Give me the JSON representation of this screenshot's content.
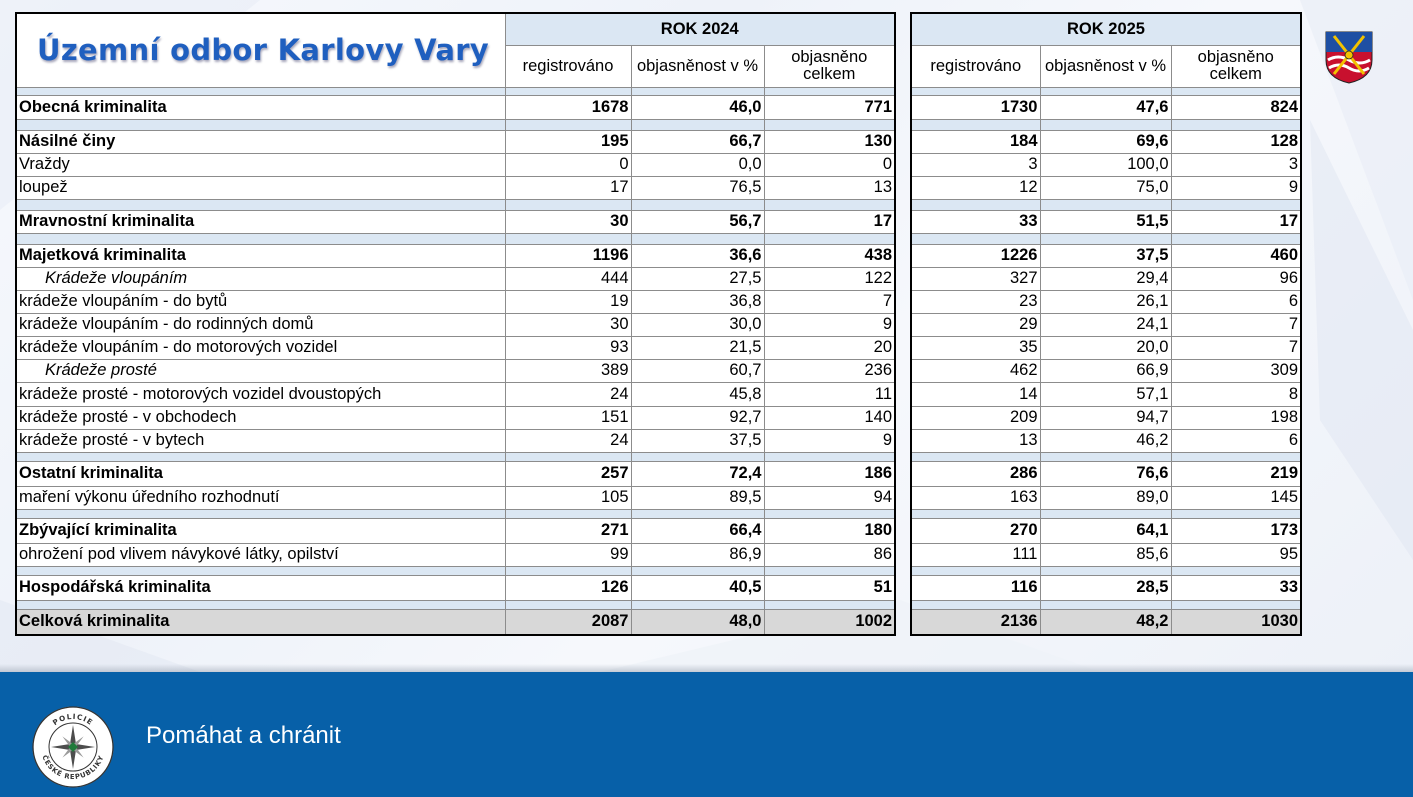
{
  "page": {
    "title": "Územní odbor Karlovy Vary",
    "slogan": "Pomáhat a chránit",
    "badge_text": "POLICIE ČESKÉ REPUBLIKY",
    "footer_color": "#0760a8",
    "title_color": "#1f5fbf"
  },
  "years": {
    "left": "ROK 2024",
    "right": "ROK 2025"
  },
  "columns": {
    "registered": "registrováno",
    "clearance_pct": "objasněnost v %",
    "cleared_total": "objasněno celkem"
  },
  "rows": [
    {
      "label": "Obecná kriminalita",
      "y2024": [
        "1678",
        "46,0",
        "771"
      ],
      "y2025": [
        "1730",
        "47,6",
        "824"
      ]
    },
    {
      "label": "Násilné činy",
      "y2024": [
        "195",
        "66,7",
        "130"
      ],
      "y2025": [
        "184",
        "69,6",
        "128"
      ]
    },
    {
      "label": "Vraždy",
      "y2024": [
        "0",
        "0,0",
        "0"
      ],
      "y2025": [
        "3",
        "100,0",
        "3"
      ]
    },
    {
      "label": "loupež",
      "y2024": [
        "17",
        "76,5",
        "13"
      ],
      "y2025": [
        "12",
        "75,0",
        "9"
      ]
    },
    {
      "label": "Mravnostní kriminalita",
      "y2024": [
        "30",
        "56,7",
        "17"
      ],
      "y2025": [
        "33",
        "51,5",
        "17"
      ]
    },
    {
      "label": "Majetková kriminalita",
      "y2024": [
        "1196",
        "36,6",
        "438"
      ],
      "y2025": [
        "1226",
        "37,5",
        "460"
      ]
    },
    {
      "label": "Krádeže vloupáním",
      "y2024": [
        "444",
        "27,5",
        "122"
      ],
      "y2025": [
        "327",
        "29,4",
        "96"
      ]
    },
    {
      "label": "krádeže vloupáním - do bytů",
      "y2024": [
        "19",
        "36,8",
        "7"
      ],
      "y2025": [
        "23",
        "26,1",
        "6"
      ]
    },
    {
      "label": "krádeže vloupáním - do rodinných domů",
      "y2024": [
        "30",
        "30,0",
        "9"
      ],
      "y2025": [
        "29",
        "24,1",
        "7"
      ]
    },
    {
      "label": "krádeže vloupáním - do motorových vozidel",
      "y2024": [
        "93",
        "21,5",
        "20"
      ],
      "y2025": [
        "35",
        "20,0",
        "7"
      ]
    },
    {
      "label": "Krádeže prosté",
      "y2024": [
        "389",
        "60,7",
        "236"
      ],
      "y2025": [
        "462",
        "66,9",
        "309"
      ]
    },
    {
      "label": "krádeže prosté - motorových vozidel dvoustopých",
      "y2024": [
        "24",
        "45,8",
        "11"
      ],
      "y2025": [
        "14",
        "57,1",
        "8"
      ]
    },
    {
      "label": "krádeže prosté - v obchodech",
      "y2024": [
        "151",
        "92,7",
        "140"
      ],
      "y2025": [
        "209",
        "94,7",
        "198"
      ]
    },
    {
      "label": "krádeže prosté - v bytech",
      "y2024": [
        "24",
        "37,5",
        "9"
      ],
      "y2025": [
        "13",
        "46,2",
        "6"
      ]
    },
    {
      "label": "Ostatní kriminalita",
      "y2024": [
        "257",
        "72,4",
        "186"
      ],
      "y2025": [
        "286",
        "76,6",
        "219"
      ]
    },
    {
      "label": "maření výkonu úředního rozhodnutí",
      "y2024": [
        "105",
        "89,5",
        "94"
      ],
      "y2025": [
        "163",
        "89,0",
        "145"
      ]
    },
    {
      "label": "Zbývající kriminalita",
      "y2024": [
        "271",
        "66,4",
        "180"
      ],
      "y2025": [
        "270",
        "64,1",
        "173"
      ]
    },
    {
      "label": "ohrožení pod vlivem návykové látky, opilství",
      "y2024": [
        "99",
        "86,9",
        "86"
      ],
      "y2025": [
        "111",
        "85,6",
        "95"
      ]
    },
    {
      "label": "Hospodářská kriminalita",
      "y2024": [
        "126",
        "40,5",
        "51"
      ],
      "y2025": [
        "116",
        "28,5",
        "33"
      ]
    },
    {
      "label": "Celková kriminalita",
      "y2024": [
        "2087",
        "48,0",
        "1002"
      ],
      "y2025": [
        "2136",
        "48,2",
        "1030"
      ]
    }
  ]
}
